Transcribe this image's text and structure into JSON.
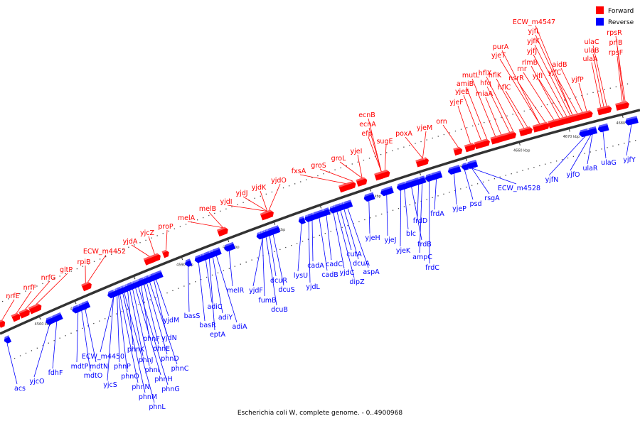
{
  "legend": {
    "forward_label": "Forward",
    "reverse_label": "Reverse",
    "forward_color": "#ff0000",
    "reverse_color": "#0000ff"
  },
  "caption": "Escherichia coli W, complete genome. - 0..4900968",
  "colors": {
    "axis": "#333333",
    "connector_forward": "#ff0000",
    "connector_reverse": "#0000ff"
  },
  "ticks": [
    "4560 kbp",
    "4570 kbp",
    "4580 kbp",
    "4590 kbp",
    "4600 kbp",
    "4610 kbp",
    "4620 kbp",
    "4630 kbp",
    "4640 kbp",
    "4650 kbp",
    "4660 kbp",
    "4670 kbp",
    "4680 kbp"
  ],
  "forward_genes": [
    "nrfE",
    "nrfF",
    "nrfG",
    "gltP",
    "rpiB",
    "ECW_m4452",
    "yjdA",
    "yjcZ",
    "proP",
    "melA",
    "melB",
    "yjdI",
    "yjdJ",
    "yjdK",
    "yjdO",
    "fxsA",
    "groS",
    "groL",
    "yjeI",
    "efp",
    "ecnA",
    "ecnB",
    "sugE",
    "poxA",
    "yjeM",
    "orn",
    "yjeF",
    "yjeE",
    "amiB",
    "mutL",
    "miaA",
    "hfq",
    "hflX",
    "hflK",
    "hflC",
    "purA",
    "yjeT",
    "nsrR",
    "rnr",
    "rlmB",
    "yjfI",
    "yjfJ",
    "yjfK",
    "yjfL",
    "ECW_m4547",
    "yjfC",
    "aidB",
    "yjfP",
    "ulaA",
    "ulaB",
    "ulaC",
    "rpsF",
    "priB",
    "rpsR"
  ],
  "reverse_genes": [
    "acs",
    "yjcO",
    "fdhF",
    "mdtP",
    "mdtO",
    "mdtN",
    "yjcS",
    "ECW_m4450",
    "phnP",
    "phnO",
    "phnN",
    "phnM",
    "phnL",
    "phnK",
    "phnJ",
    "phnI",
    "phnH",
    "phnG",
    "phnF",
    "phnE",
    "phnD",
    "phnC",
    "yjdN",
    "yjdM",
    "basS",
    "basR",
    "adiC",
    "eptA",
    "adiY",
    "adiA",
    "melR",
    "yjdF",
    "fumB",
    "dcuB",
    "dcuR",
    "dcuS",
    "lysU",
    "yjdL",
    "cadA",
    "cadB",
    "cadC",
    "yjdC",
    "dipZ",
    "cutA",
    "dcuA",
    "aspA",
    "yjeH",
    "yjeJ",
    "blc",
    "yjeK",
    "frdD",
    "frdB",
    "ampC",
    "frdC",
    "frdA",
    "yjeP",
    "psd",
    "rsgA",
    "ECW_m4528",
    "yjfN",
    "yjfO",
    "ulaR",
    "ulaG",
    "yjfY"
  ]
}
